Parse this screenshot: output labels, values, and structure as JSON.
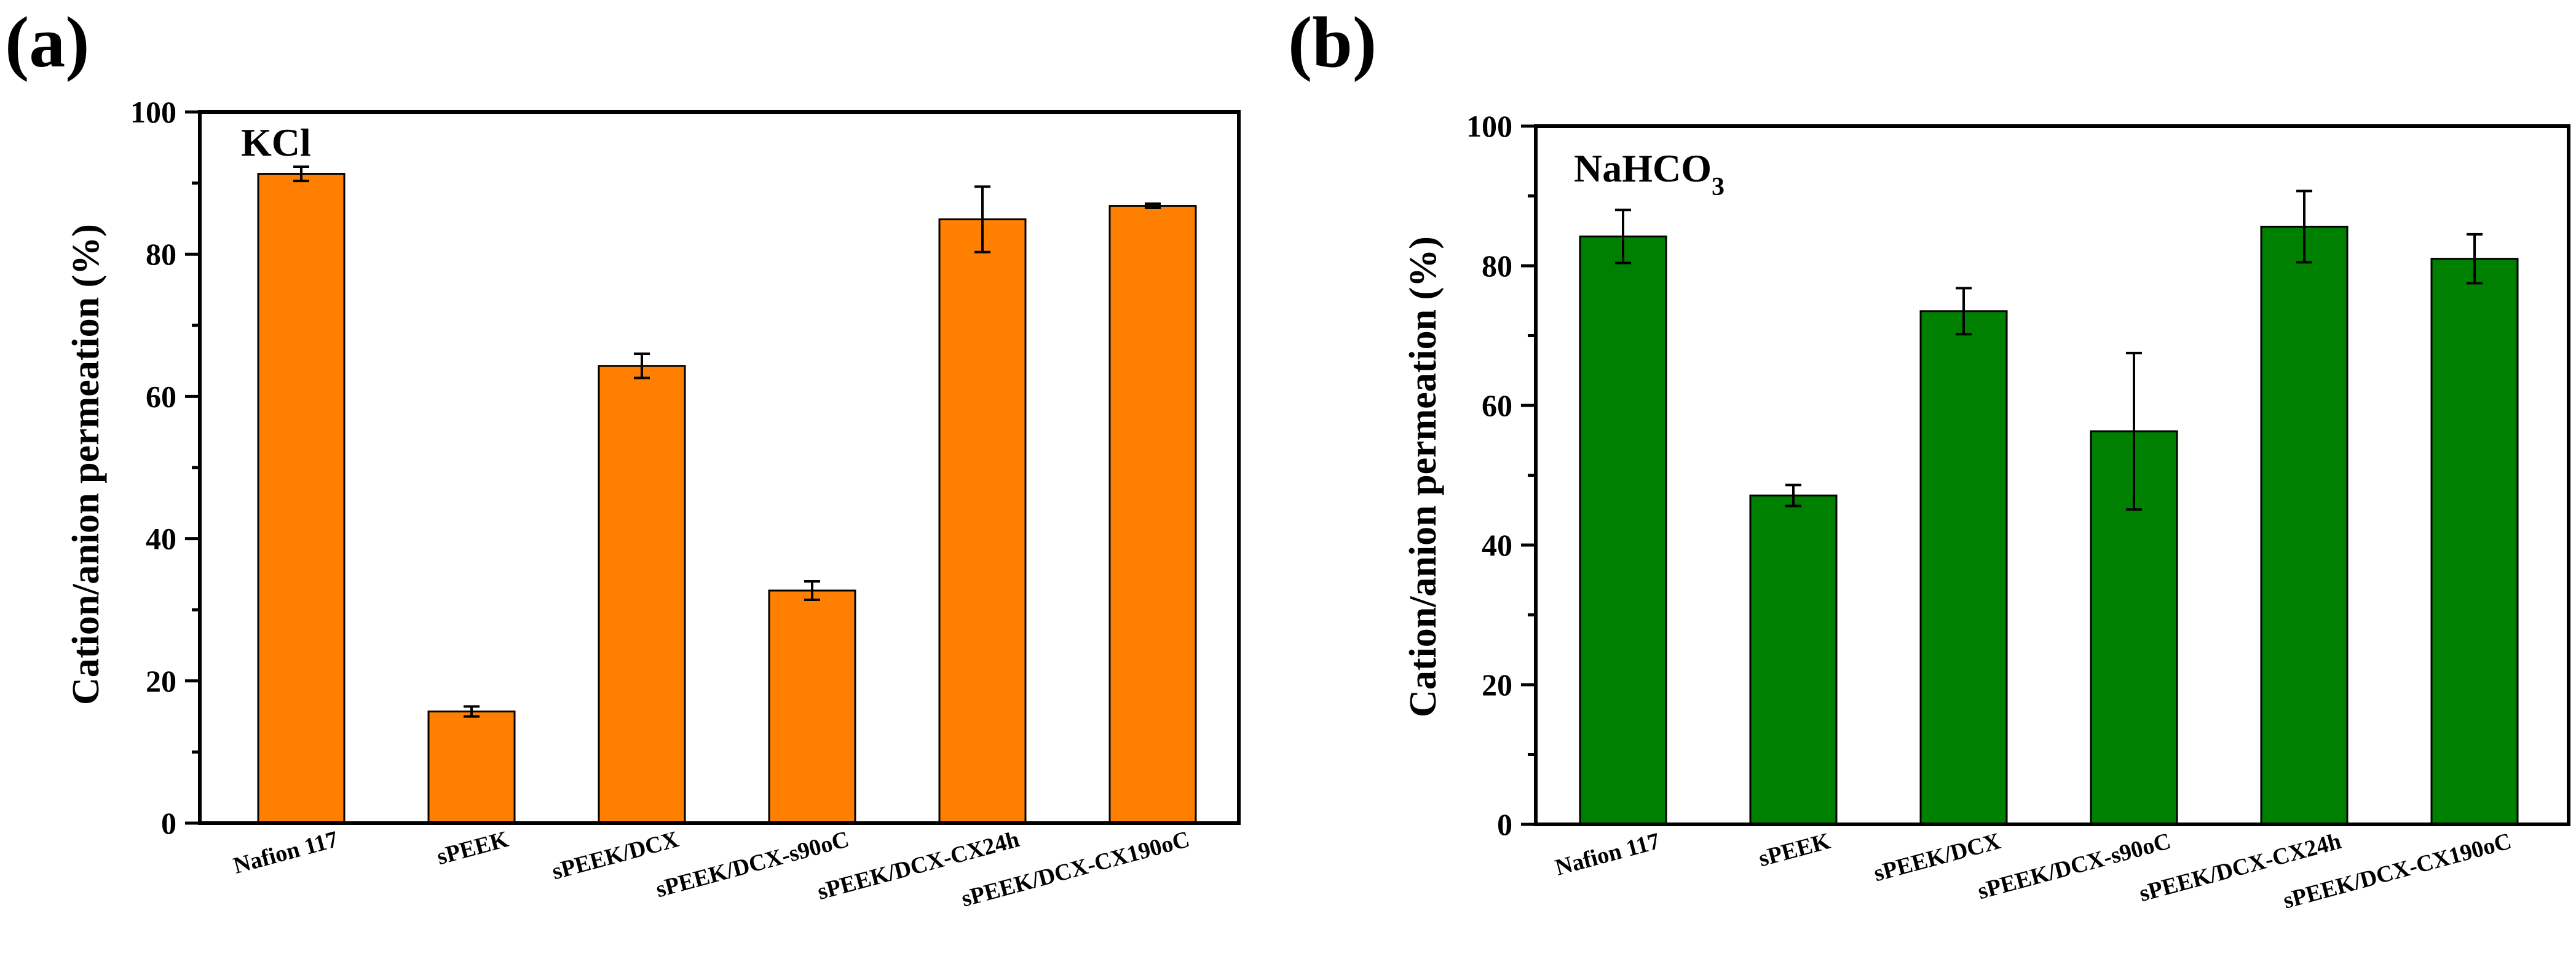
{
  "chart_data": [
    {
      "type": "bar",
      "panel": "(a)",
      "series_label": "KCl",
      "categories": [
        "Nafion 117",
        "sPEEK",
        "sPEEK/DCX",
        "sPEEK/DCX-s90oC",
        "sPEEK/DCX-CX24h",
        "sPEEK/DCX-CX190oC"
      ],
      "values": [
        91.3,
        15.7,
        64.3,
        32.7,
        84.9,
        86.8
      ],
      "errors": [
        1.0,
        0.7,
        1.7,
        1.3,
        4.6,
        0.3
      ],
      "ylabel": "Cation/anion permeation (%)",
      "ylim": [
        0,
        100
      ],
      "yticks": [
        "0",
        "20",
        "40",
        "60",
        "80",
        "100"
      ],
      "color": "#ff8000"
    },
    {
      "type": "bar",
      "panel": "(b)",
      "series_label": "NaHCO",
      "series_label_sub": "3",
      "categories": [
        "Nafion 117",
        "sPEEK",
        "sPEEK/DCX",
        "sPEEK/DCX-s90oC",
        "sPEEK/DCX-CX24h",
        "sPEEK/DCX-CX190oC"
      ],
      "values": [
        84.2,
        47.1,
        73.5,
        56.3,
        85.6,
        81.0
      ],
      "errors": [
        3.8,
        1.5,
        3.3,
        11.2,
        5.1,
        3.5
      ],
      "ylabel": "Cation/anion permeation (%)",
      "ylim": [
        0,
        100
      ],
      "yticks": [
        "0",
        "20",
        "40",
        "60",
        "80",
        "100"
      ],
      "color": "#008000"
    }
  ]
}
